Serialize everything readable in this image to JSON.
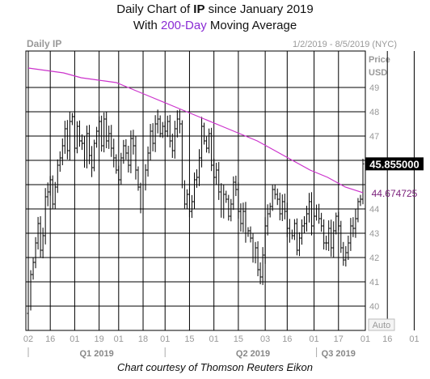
{
  "title": {
    "line1_prefix": "Daily Chart of ",
    "line1_ticker": "IP",
    "line1_suffix": " since January 2019",
    "line2_prefix": "With ",
    "line2_accent": "200-Day",
    "line2_suffix": " Moving Average"
  },
  "header": {
    "left_label": "Daily IP",
    "date_range": "1/2/2019 - 8/5/2019 (NYC)",
    "price_label": "Price",
    "currency_label": "USD"
  },
  "auto_label": "Auto",
  "credit": "Chart courtesy of Thomson Reuters Eikon",
  "colors": {
    "price_bars": "#000000",
    "moving_average": "#cc33cc",
    "title_accent": "#8a2bd4",
    "badge_bg": "#000000",
    "badge_text": "#ffffff"
  },
  "chart_data": {
    "type": "line",
    "ylim": [
      39,
      50.5
    ],
    "y_ticks": [
      40,
      41,
      42,
      43,
      44,
      45,
      46,
      47,
      48,
      49
    ],
    "y_tick_labels": [
      "40",
      "41",
      "42",
      "43",
      "44",
      "",
      "",
      "47",
      "48",
      "49"
    ],
    "x_ticks": [
      {
        "i": 0,
        "label": "02"
      },
      {
        "i": 9,
        "label": "16"
      },
      {
        "i": 19,
        "label": "01"
      },
      {
        "i": 29,
        "label": "19"
      },
      {
        "i": 37,
        "label": "01"
      },
      {
        "i": 47,
        "label": "18"
      },
      {
        "i": 56,
        "label": "01"
      },
      {
        "i": 66,
        "label": "15"
      },
      {
        "i": 76,
        "label": "01"
      },
      {
        "i": 86,
        "label": "15"
      },
      {
        "i": 97,
        "label": "03"
      },
      {
        "i": 106,
        "label": "16"
      },
      {
        "i": 117,
        "label": "01"
      },
      {
        "i": 127,
        "label": "17"
      },
      {
        "i": 138,
        "label": "01"
      },
      {
        "i": 147,
        "label": "16"
      },
      {
        "i": 158,
        "label": "01"
      }
    ],
    "quarters": [
      {
        "label": "Q1 2019",
        "start": 0,
        "mid": 28
      },
      {
        "label": "Q2 2019",
        "start": 56,
        "mid": 92
      },
      {
        "label": "Q3 2019",
        "start": 118,
        "mid": 127
      }
    ],
    "last_price": {
      "value": 45.855,
      "label": "45.855000"
    },
    "ma_last": {
      "value": 44.674725,
      "label": "44.674725"
    },
    "series": [
      {
        "name": "Price",
        "values": [
          40.0,
          41.3,
          41.8,
          42.6,
          43.4,
          42.3,
          42.9,
          44.5,
          44.7,
          45.2,
          44.2,
          44.9,
          45.8,
          46.1,
          46.6,
          47.3,
          46.4,
          47.6,
          47.8,
          46.5,
          47.4,
          46.8,
          46.7,
          46.0,
          47.1,
          46.2,
          45.7,
          46.7,
          47.2,
          47.6,
          46.6,
          47.7,
          46.8,
          47.1,
          46.5,
          46.1,
          45.6,
          45.2,
          46.1,
          46.6,
          46.3,
          45.8,
          46.9,
          46.6,
          45.6,
          44.9,
          44.0,
          45.0,
          45.6,
          46.3,
          47.2,
          46.7,
          47.5,
          47.7,
          47.1,
          47.4,
          47.2,
          47.6,
          46.8,
          46.4,
          47.3,
          47.7,
          47.5,
          45.0,
          44.2,
          44.6,
          43.9,
          44.3,
          45.2,
          45.3,
          46.1,
          47.4,
          46.8,
          46.5,
          47.1,
          45.8,
          45.3,
          45.6,
          44.7,
          44.0,
          44.6,
          44.4,
          43.7,
          44.2,
          45.1,
          44.8,
          43.9,
          43.4,
          43.9,
          43.0,
          43.1,
          42.8,
          42.0,
          42.4,
          41.5,
          41.2,
          42.1,
          43.3,
          43.8,
          44.1,
          44.8,
          44.6,
          44.4,
          43.8,
          44.3,
          43.9,
          43.2,
          43.0,
          42.9,
          43.4,
          42.3,
          42.8,
          43.3,
          43.4,
          43.8,
          44.3,
          43.3,
          43.7,
          44.0,
          43.6,
          43.3,
          42.6,
          42.6,
          43.2,
          42.4,
          43.1,
          43.7,
          43.3,
          42.4,
          41.9,
          42.2,
          42.6,
          43.3,
          43.2,
          43.6,
          44.3,
          44.4,
          45.855
        ]
      },
      {
        "name": "200-Day Moving Average",
        "values": [
          49.8,
          49.7,
          49.6,
          49.4,
          49.3,
          49.2,
          48.9,
          48.6,
          48.3,
          48.0,
          47.7,
          47.4,
          47.1,
          46.8,
          46.4,
          46.0,
          45.6,
          45.3,
          44.9,
          44.67
        ]
      }
    ]
  }
}
